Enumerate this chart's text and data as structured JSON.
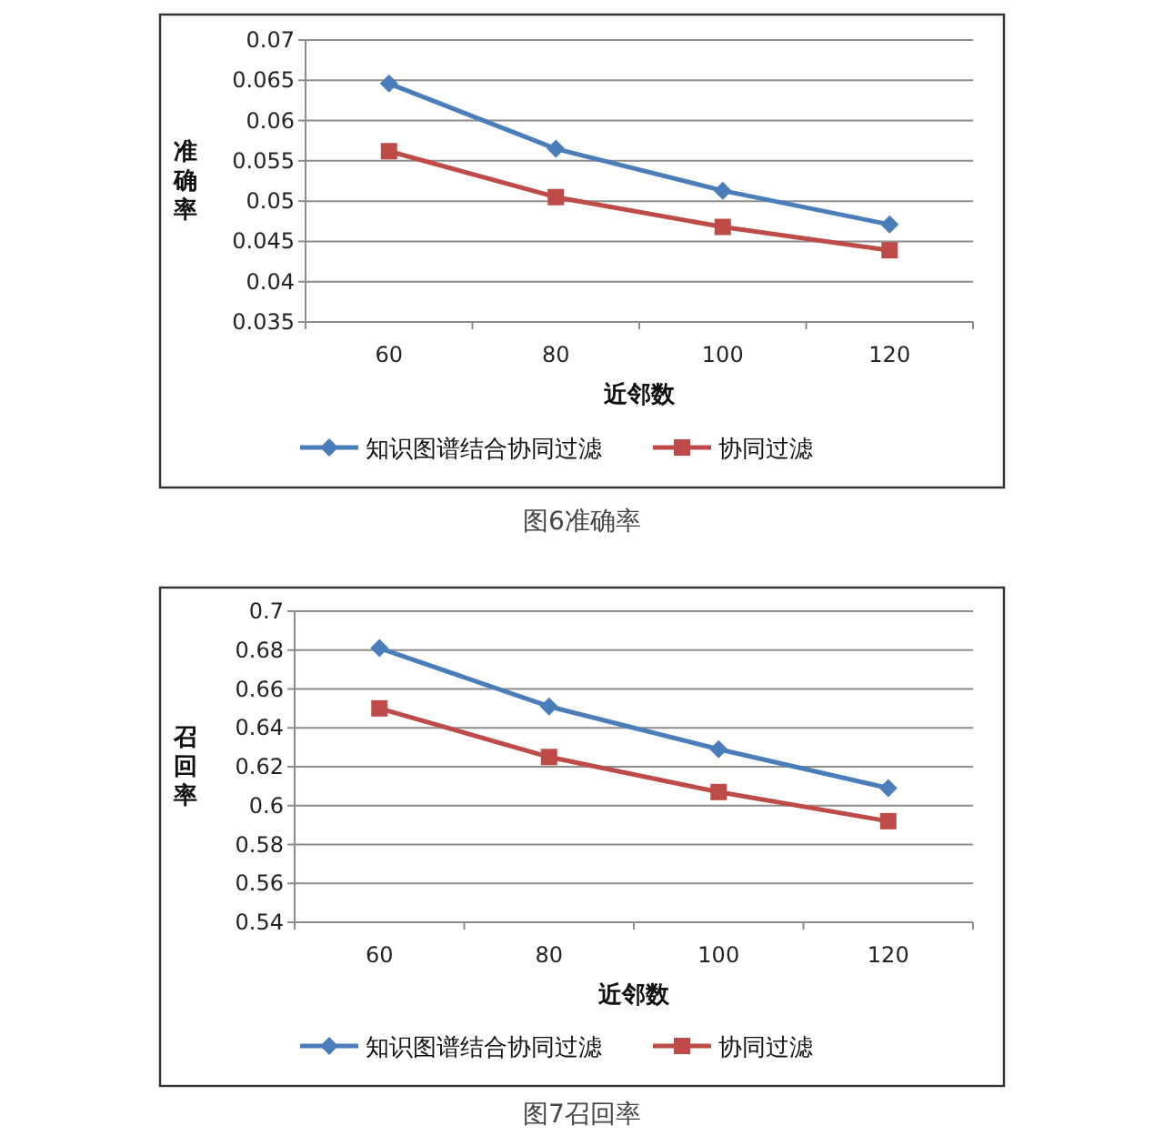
{
  "chart_data": [
    {
      "type": "line",
      "ylabel": "准确率",
      "xlabel": "近邻数",
      "categories": [
        "60",
        "80",
        "100",
        "120"
      ],
      "series": [
        {
          "name": "知识图谱结合协同过滤",
          "color": "#4a7ebb",
          "marker": "diamond",
          "values": [
            0.0646,
            0.0565,
            0.0513,
            0.0471
          ]
        },
        {
          "name": "协同过滤",
          "color": "#be4b48",
          "marker": "square",
          "values": [
            0.0562,
            0.0505,
            0.0468,
            0.0439
          ]
        }
      ],
      "ylim": [
        0.035,
        0.07
      ],
      "yticks": [
        0.035,
        0.04,
        0.045,
        0.05,
        0.055,
        0.06,
        0.065,
        0.07
      ],
      "grid": "y",
      "legend": "bottom",
      "annotations": [
        "图6准确率"
      ]
    },
    {
      "type": "line",
      "ylabel": "召回率",
      "xlabel": "近邻数",
      "categories": [
        "60",
        "80",
        "100",
        "120"
      ],
      "series": [
        {
          "name": "知识图谱结合协同过滤",
          "color": "#4a7ebb",
          "marker": "diamond",
          "values": [
            0.681,
            0.651,
            0.629,
            0.609
          ]
        },
        {
          "name": "协同过滤",
          "color": "#be4b48",
          "marker": "square",
          "values": [
            0.65,
            0.625,
            0.607,
            0.592
          ]
        }
      ],
      "ylim": [
        0.54,
        0.7
      ],
      "yticks": [
        0.54,
        0.56,
        0.58,
        0.6,
        0.62,
        0.64,
        0.66,
        0.68,
        0.7
      ],
      "grid": "y",
      "legend": "bottom",
      "annotations": [
        "图7召回率"
      ]
    }
  ]
}
